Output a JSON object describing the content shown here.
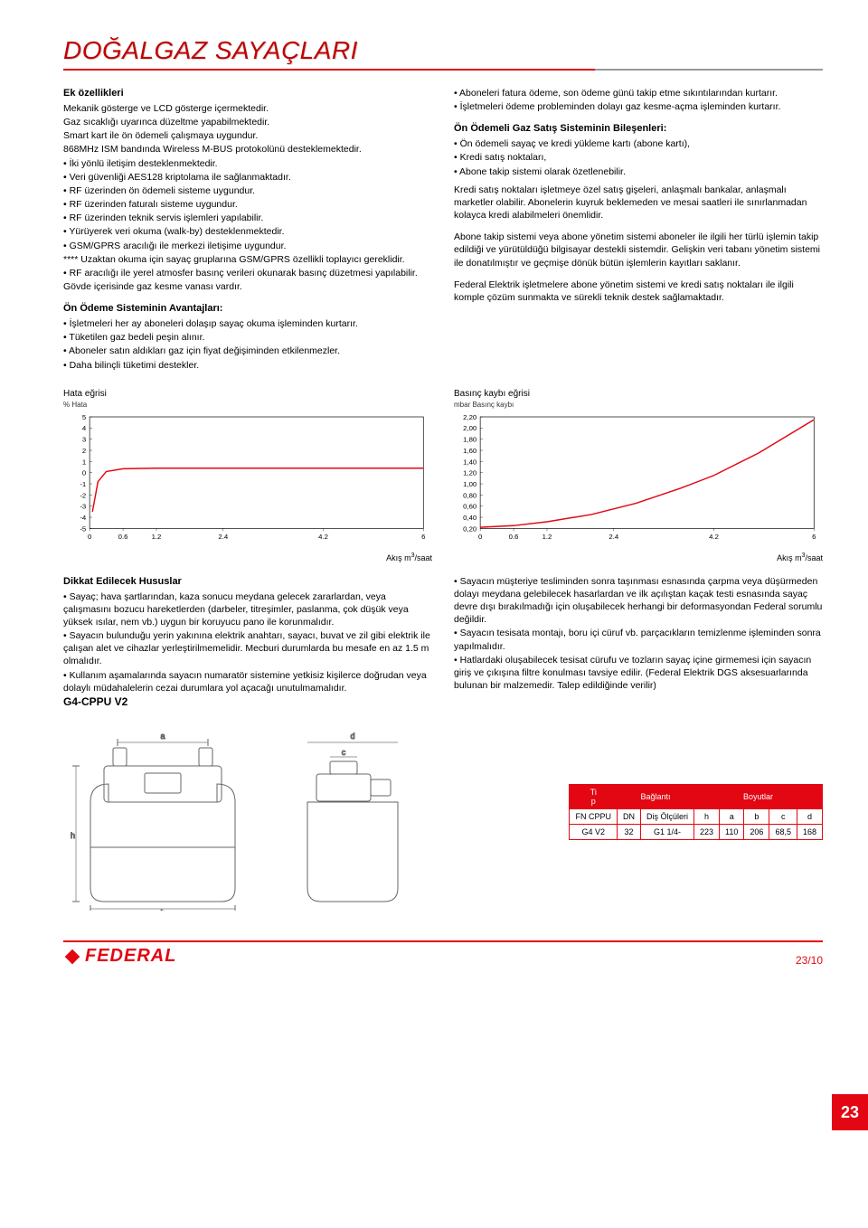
{
  "title": "DOĞALGAZ SAYAÇLARI",
  "left": {
    "h1": "Ek özellikleri",
    "p1": "Mekanik gösterge ve LCD gösterge içermektedir.",
    "p2": "Gaz sıcaklığı uyarınca düzeltme yapabilmektedir.",
    "p3": "Smart kart ile ön ödemeli çalışmaya uygundur.",
    "p4": "868MHz ISM bandında Wireless M-BUS protokolünü desteklemektedir.",
    "b1": "İki yönlü iletişim desteklenmektedir.",
    "b2": "Veri güvenliği AES128 kriptolama ile sağlanmaktadır.",
    "b3": "RF üzerinden ön ödemeli sisteme uygundur.",
    "b4": "RF üzerinden faturalı sisteme uygundur.",
    "b5": "RF üzerinden teknik servis işlemleri yapılabilir.",
    "b6": "Yürüyerek veri okuma (walk-by) desteklenmektedir.",
    "b7": "GSM/GPRS aracılığı ile merkezi iletişime uygundur.",
    "p5": "**** Uzaktan okuma için sayaç gruplarına GSM/GPRS özellikli toplayıcı gereklidir.",
    "b8": "RF aracılığı ile yerel atmosfer basınç verileri okunarak basınç düzetmesi yapılabilir.",
    "p6": "Gövde içerisinde gaz kesme vanası vardır.",
    "h2": "Ön Ödeme Sisteminin Avantajları:",
    "b9": "İşletmeleri her ay aboneleri dolaşıp sayaç okuma işleminden kurtarır.",
    "b10": "Tüketilen gaz bedeli peşin alınır.",
    "b11": "Aboneler satın aldıkları gaz için fiyat değişiminden etkilenmezler.",
    "b12": "Daha bilinçli tüketimi destekler."
  },
  "right": {
    "b1": "Aboneleri fatura ödeme, son ödeme günü takip etme sıkıntılarından kurtarır.",
    "b2": "İşletmeleri ödeme probleminden dolayı gaz kesme-açma işleminden kurtarır.",
    "h1": "Ön Ödemeli Gaz Satış Sisteminin Bileşenleri:",
    "b3": "Ön ödemeli sayaç ve kredi yükleme kartı (abone kartı),",
    "b4": "Kredi satış noktaları,",
    "b5": "Abone takip sistemi olarak özetlenebilir.",
    "p1": "Kredi satış noktaları işletmeye özel satış gişeleri, anlaşmalı bankalar, anlaşmalı marketler olabilir. Abonelerin kuyruk beklemeden ve mesai saatleri ile sınırlanmadan kolayca kredi alabilmeleri önemlidir.",
    "p2": "Abone takip sistemi veya abone yönetim sistemi aboneler ile ilgili her türlü işlemin takip edildiği ve yürütüldüğü bilgisayar destekli sistemdir. Gelişkin veri tabanı yönetim sistemi ile donatılmıştır ve geçmişe dönük bütün işlemlerin kayıtları saklanır.",
    "p3": "Federal Elektrik işletmelere abone yönetim sistemi ve kredi satış noktaları ile ilgili komple çözüm sunmakta ve sürekli teknik destek sağlamaktadır."
  },
  "chart1": {
    "title": "Hata eğrisi",
    "sub": "% Hata",
    "type": "line",
    "xlim": [
      0,
      6
    ],
    "ylim": [
      -5,
      5
    ],
    "xticks": [
      "0",
      "0.6",
      "1.2",
      "2.4",
      "4.2",
      "6"
    ],
    "yticks": [
      "5",
      "4",
      "3",
      "2",
      "1",
      "0",
      "-1",
      "-2",
      "-3",
      "-4",
      "-5"
    ],
    "line_color": "#e30613",
    "grid_color": "#333333",
    "background": "#ffffff",
    "line_width": 1.5,
    "points": [
      [
        0.05,
        -3.5
      ],
      [
        0.15,
        -0.8
      ],
      [
        0.3,
        0.1
      ],
      [
        0.6,
        0.35
      ],
      [
        1.2,
        0.4
      ],
      [
        2.4,
        0.4
      ],
      [
        4.2,
        0.4
      ],
      [
        6,
        0.4
      ]
    ],
    "xlabel": "Akış m³/saat"
  },
  "chart2": {
    "title": "Basınç kaybı eğrisi",
    "sub": "mbar Basınç kaybı",
    "type": "line",
    "xlim": [
      0,
      6
    ],
    "ylim": [
      0.2,
      2.2
    ],
    "xticks": [
      "0",
      "0.6",
      "1.2",
      "2.4",
      "4.2",
      "6"
    ],
    "yticks": [
      "2,20",
      "2,00",
      "1,80",
      "1,60",
      "1,40",
      "1,20",
      "1,00",
      "0,80",
      "0,60",
      "0,40",
      "0,20"
    ],
    "line_color": "#e30613",
    "grid_color": "#333333",
    "background": "#ffffff",
    "line_width": 1.5,
    "points": [
      [
        0,
        0.22
      ],
      [
        0.6,
        0.25
      ],
      [
        1.2,
        0.32
      ],
      [
        2.0,
        0.45
      ],
      [
        2.8,
        0.65
      ],
      [
        3.6,
        0.92
      ],
      [
        4.2,
        1.15
      ],
      [
        5.0,
        1.55
      ],
      [
        5.5,
        1.85
      ],
      [
        6,
        2.15
      ]
    ],
    "xlabel": "Akış m³/saat"
  },
  "lower_left": {
    "h1": "Dikkat Edilecek Hususlar",
    "b1": "Sayaç; hava şartlarından, kaza sonucu meydana gelecek zararlardan, veya çalışmasını bozucu hareketlerden (darbeler, titreşimler, paslanma, çok düşük veya yüksek ısılar, nem vb.) uygun bir koruyucu pano ile korunmalıdır.",
    "b2": "Sayacın bulunduğu yerin yakınına elektrik anahtarı, sayacı, buvat ve zil gibi elektrik ile çalışan alet ve cihazlar yerleştirilmemelidir. Mecburi durumlarda bu mesafe en az 1.5 m olmalıdır.",
    "b3": "Kullanım aşamalarında sayacın numaratör sistemine yetkisiz kişilerce doğrudan veya dolaylı müdahalelerin cezai durumlara yol açacağı unutulmamalıdır."
  },
  "lower_right": {
    "b1": "Sayacın müşteriye tesliminden sonra taşınması esnasında çarpma veya düşürmeden dolayı meydana gelebilecek hasarlardan ve ilk açılıştan kaçak testi esnasında sayaç devre dışı bırakılmadığı için oluşabilecek herhangi bir deformasyondan Federal sorumlu değildir.",
    "b2": "Sayacın tesisata montajı, boru içi cüruf vb. parçacıkların temizlenme işleminden sonra yapılmalıdır.",
    "b3": "Hatlardaki oluşabilecek tesisat cürufu ve tozların sayaç içine girmemesi için sayacın giriş ve çıkışına filtre konulması tavsiye edilir. (Federal Elektrik DGS aksesuarlarında bulunan bir malzemedir. Talep edildiğinde verilir)"
  },
  "model": {
    "name": "G4-CPPU V2",
    "dims": {
      "a": "a",
      "b": "b",
      "c": "c",
      "d": "d",
      "h": "h"
    },
    "table": {
      "headers": [
        "Ti p",
        "Bağlantı",
        "",
        "Boyutlar",
        "",
        "",
        "",
        ""
      ],
      "sub": [
        "FN CPPU",
        "DN",
        "Diş Ölçüleri",
        "h",
        "a",
        "b",
        "c",
        "d"
      ],
      "row": [
        "G4 V2",
        "32",
        "G1 1/4-",
        "223",
        "110",
        "206",
        "68,5",
        "168"
      ]
    }
  },
  "page_badge": "23",
  "logo_text": "FEDERAL",
  "page_num": "23/10",
  "colors": {
    "accent": "#e30613",
    "text": "#000000",
    "bg": "#ffffff"
  }
}
